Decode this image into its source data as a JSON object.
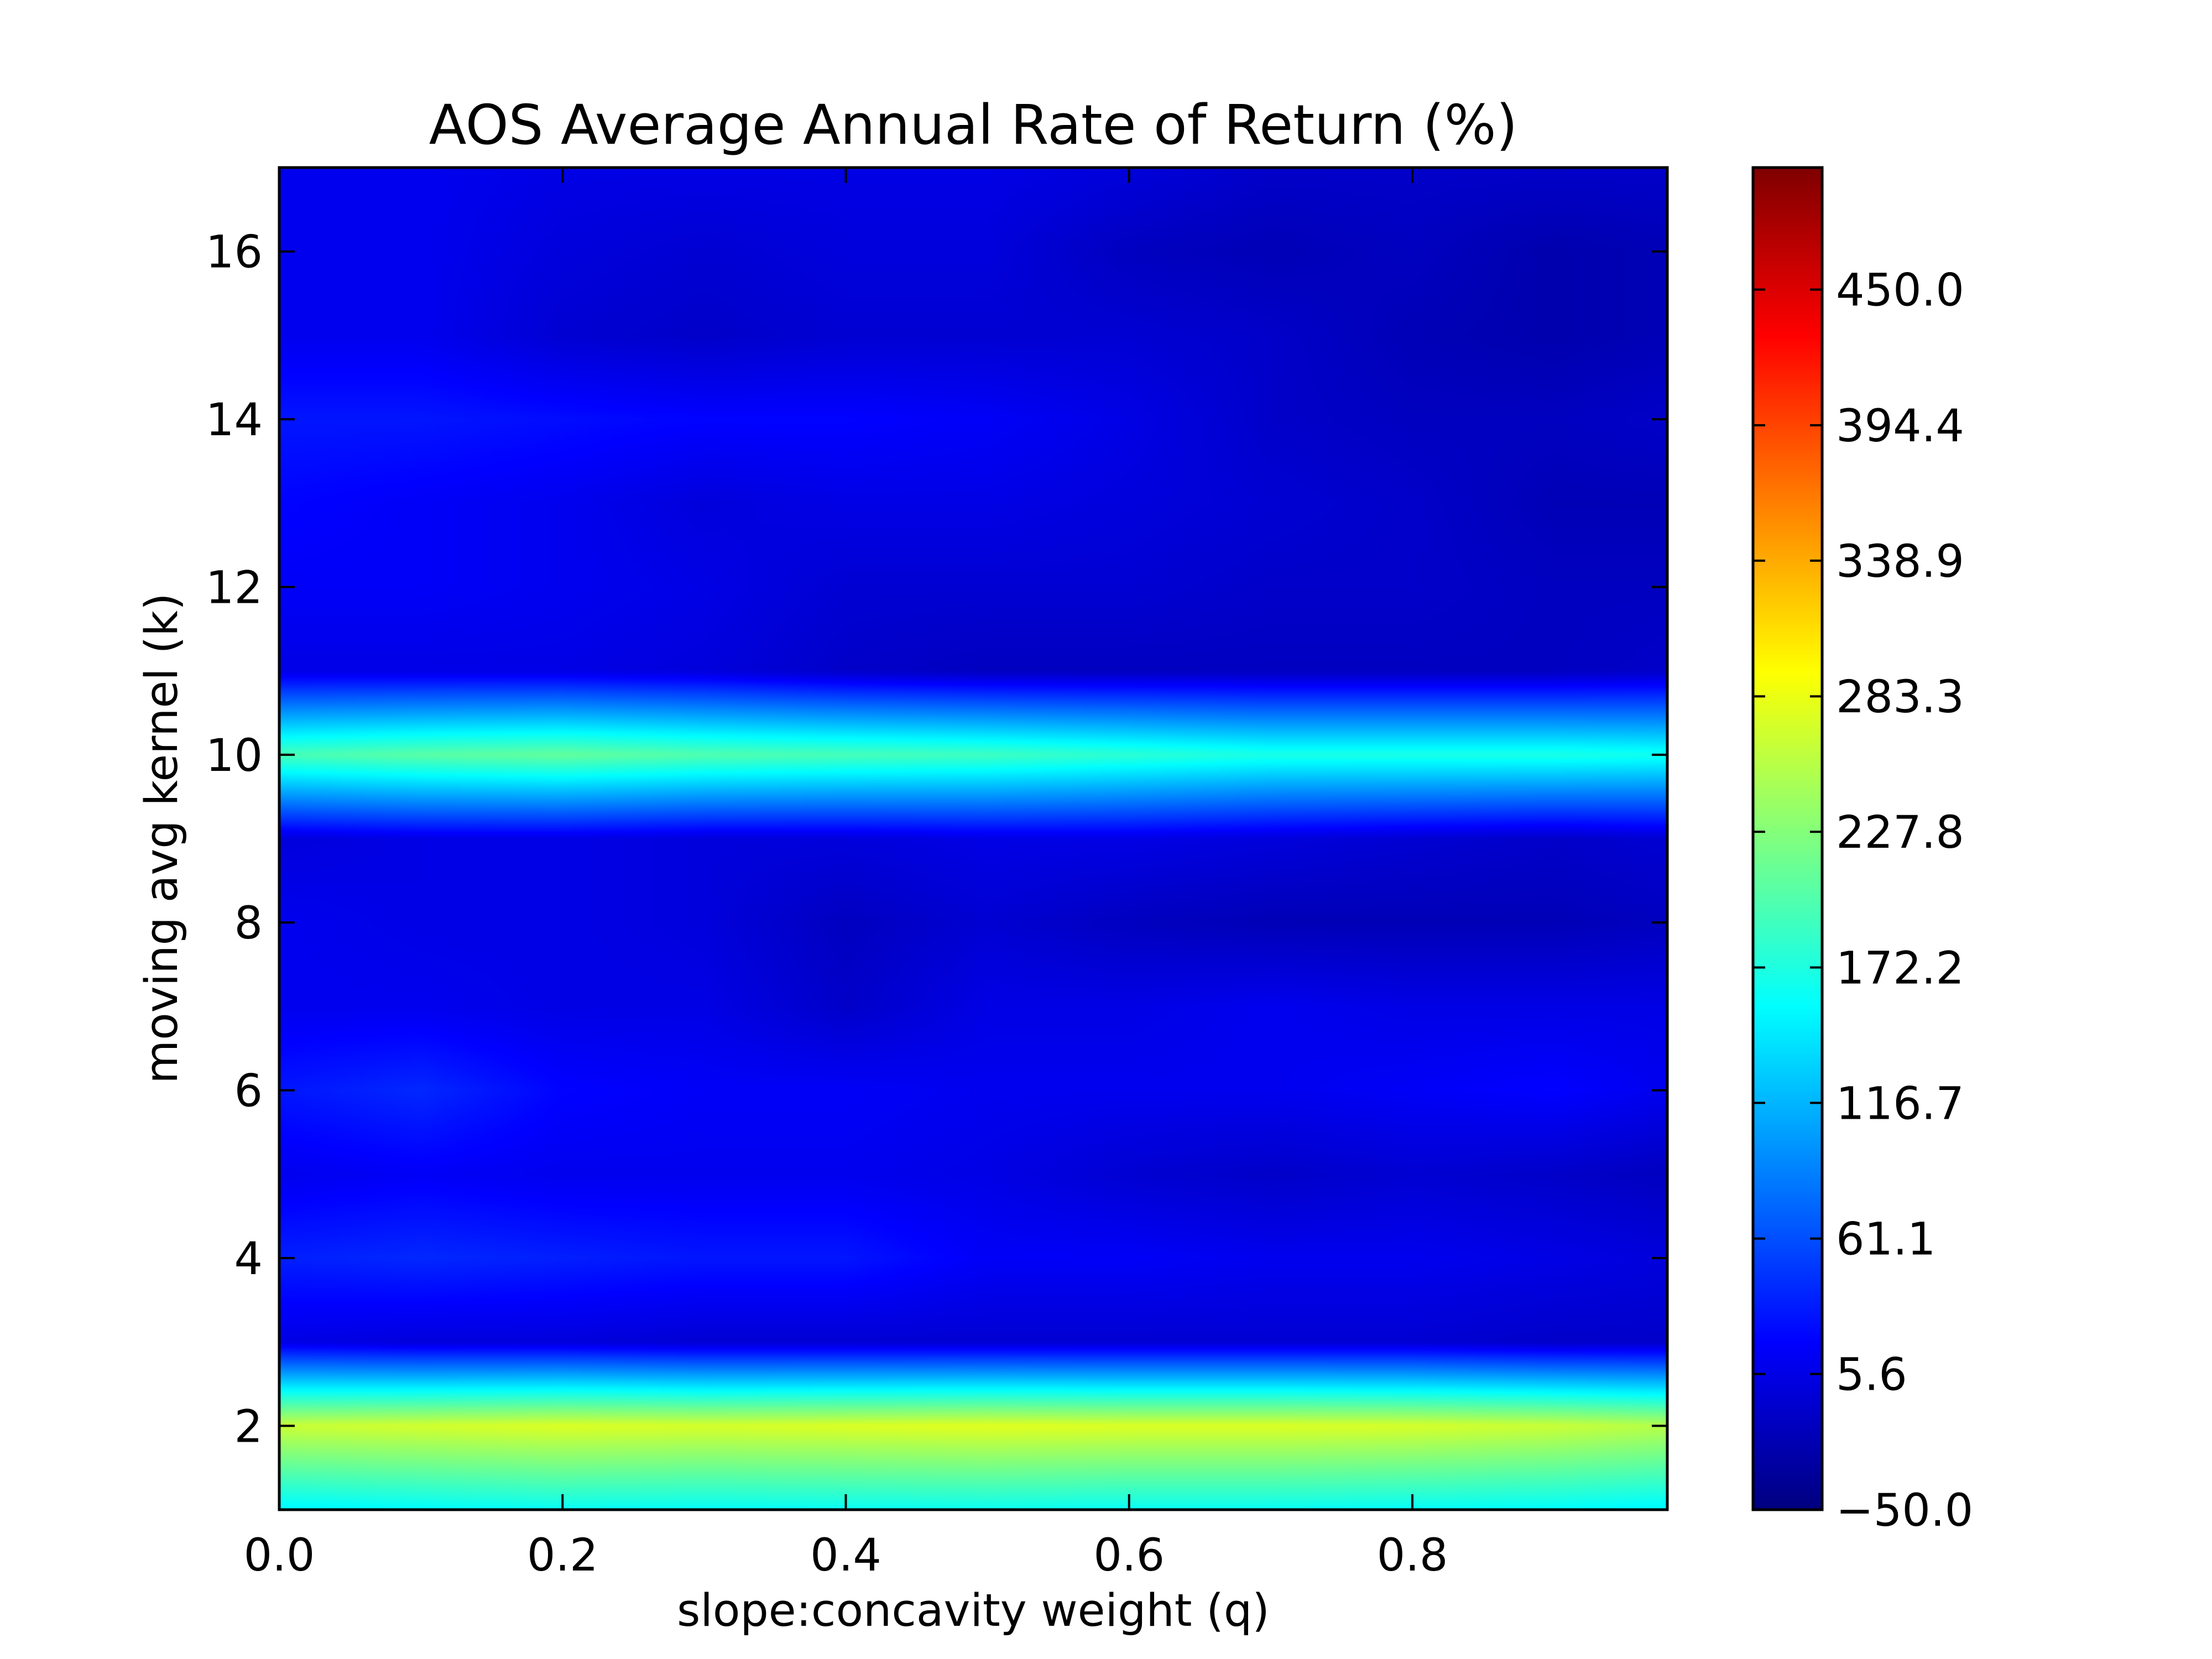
{
  "chart_data": {
    "type": "heatmap",
    "title": "AOS Average Annual Rate of Return (%)",
    "xlabel": "slope:concavity weight (q)",
    "ylabel": "moving avg kernel (k)",
    "xlim": [
      0.0,
      0.98
    ],
    "ylim": [
      1,
      17
    ],
    "x_ticks": [
      "0.0",
      "0.2",
      "0.4",
      "0.6",
      "0.8"
    ],
    "y_ticks": [
      "2",
      "4",
      "6",
      "8",
      "10",
      "12",
      "14",
      "16"
    ],
    "colormap": "jet",
    "colorbar": {
      "min": -50.0,
      "max": 500.0,
      "tick_values": [
        -50.0,
        5.6,
        61.1,
        116.7,
        172.2,
        227.8,
        283.3,
        338.9,
        394.4,
        450.0
      ],
      "tick_labels": [
        "−50.0",
        "5.6",
        "61.1",
        "116.7",
        "172.2",
        "227.8",
        "283.3",
        "338.9",
        "394.4",
        "450.0"
      ]
    },
    "x": [
      0.0,
      0.1,
      0.2,
      0.3,
      0.4,
      0.5,
      0.6,
      0.7,
      0.8,
      0.9,
      0.98
    ],
    "y": [
      1,
      2,
      3,
      4,
      5,
      6,
      7,
      8,
      9,
      10,
      11,
      12,
      13,
      14,
      15,
      16,
      17
    ],
    "z": [
      [
        150,
        155,
        160,
        158,
        160,
        162,
        160,
        160,
        158,
        155,
        150
      ],
      [
        265,
        270,
        275,
        272,
        275,
        278,
        275,
        275,
        272,
        265,
        255
      ],
      [
        5,
        0,
        0,
        -5,
        -5,
        -5,
        -5,
        -5,
        -5,
        -10,
        -10
      ],
      [
        35,
        40,
        35,
        30,
        30,
        15,
        15,
        10,
        10,
        5,
        0
      ],
      [
        10,
        15,
        10,
        10,
        10,
        5,
        -5,
        -10,
        -5,
        -10,
        -15
      ],
      [
        30,
        40,
        20,
        15,
        15,
        10,
        10,
        10,
        15,
        20,
        10
      ],
      [
        10,
        10,
        5,
        5,
        -10,
        5,
        5,
        10,
        5,
        5,
        5
      ],
      [
        10,
        5,
        5,
        0,
        -15,
        -5,
        -15,
        -20,
        -20,
        -20,
        -15
      ],
      [
        0,
        5,
        5,
        0,
        0,
        5,
        5,
        0,
        -5,
        -10,
        -5
      ],
      [
        195,
        205,
        210,
        200,
        195,
        190,
        180,
        170,
        170,
        170,
        165
      ],
      [
        5,
        5,
        5,
        0,
        -10,
        -15,
        -15,
        -15,
        -15,
        -15,
        -10
      ],
      [
        15,
        15,
        10,
        5,
        -5,
        -5,
        -5,
        -10,
        -10,
        -15,
        -15
      ],
      [
        20,
        15,
        10,
        0,
        5,
        5,
        0,
        -5,
        -10,
        -20,
        -20
      ],
      [
        30,
        30,
        25,
        20,
        20,
        15,
        5,
        -10,
        -15,
        -15,
        -10
      ],
      [
        10,
        10,
        -5,
        -10,
        -5,
        -5,
        -5,
        -10,
        -20,
        -25,
        -20
      ],
      [
        10,
        10,
        0,
        -5,
        0,
        0,
        -15,
        -20,
        -15,
        -25,
        -20
      ],
      [
        10,
        10,
        5,
        5,
        5,
        5,
        0,
        -10,
        -10,
        -10,
        -10
      ]
    ]
  }
}
